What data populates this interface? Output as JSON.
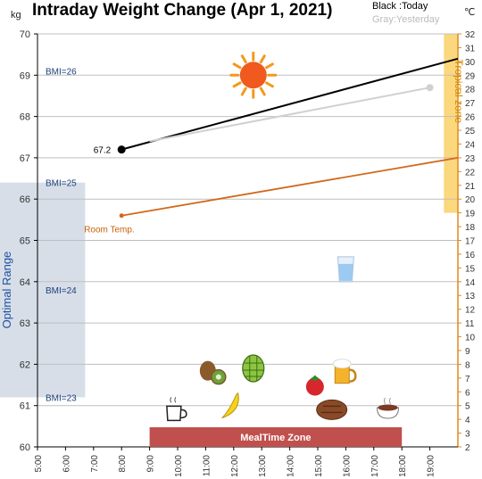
{
  "chart_data": {
    "type": "line",
    "title": "Intraday Weight Change (Apr 1, 2021)",
    "left_unit": "kg",
    "right_unit": "℃",
    "legend": {
      "today": "Black :Today",
      "yesterday": "Gray:Yesterday"
    },
    "x_ticks": [
      "5:00",
      "6:00",
      "7:00",
      "8:00",
      "9:00",
      "10:00",
      "11:00",
      "12:00",
      "13:00",
      "14:00",
      "15:00",
      "16:00",
      "17:00",
      "18:00",
      "19:00"
    ],
    "x_range_hours": [
      5,
      20
    ],
    "y_left": {
      "min": 60,
      "max": 70,
      "ticks": [
        60,
        61,
        62,
        63,
        64,
        65,
        66,
        67,
        68,
        69,
        70
      ]
    },
    "y_right": {
      "min": 2,
      "max": 32,
      "ticks": [
        2,
        3,
        4,
        5,
        6,
        7,
        8,
        9,
        10,
        11,
        12,
        13,
        14,
        15,
        16,
        17,
        18,
        19,
        20,
        21,
        22,
        23,
        24,
        25,
        26,
        27,
        28,
        29,
        30,
        31,
        32
      ]
    },
    "grid": true,
    "series": [
      {
        "name": "Today",
        "axis": "left",
        "color": "#000000",
        "points": [
          [
            8.0,
            67.2
          ],
          [
            20.0,
            69.4
          ]
        ],
        "marker": "start"
      },
      {
        "name": "Yesterday",
        "axis": "left",
        "color": "#d0d0d0",
        "points": [
          [
            9.0,
            67.4
          ],
          [
            19.0,
            68.7
          ]
        ],
        "marker": "end"
      },
      {
        "name": "Room Temp.",
        "axis": "right",
        "color": "#d2691e",
        "points": [
          [
            8.0,
            18.8
          ],
          [
            20.0,
            23.0
          ]
        ],
        "marker": "start"
      }
    ],
    "bmi_lines": [
      {
        "label": "BMI=26",
        "kg": 69.1
      },
      {
        "label": "BMI=25",
        "kg": 66.4
      },
      {
        "label": "BMI=24",
        "kg": 63.8
      },
      {
        "label": "BMI=23",
        "kg": 61.2
      }
    ],
    "bands": {
      "optimal": {
        "label": "Optimal Range",
        "kg_min": 61.2,
        "kg_max": 66.4,
        "x_max_hours": 6.7,
        "color": "#d7dee8"
      },
      "tropical": {
        "label": "Tropical zone",
        "temp_min": 19,
        "temp_max": 32,
        "x_min_hours": 19.5,
        "color": "#fbd87e"
      },
      "meal": {
        "label": "MealTime Zone",
        "x_min_hours": 9.0,
        "x_max_hours": 18.0,
        "color": "#c0504d"
      }
    },
    "labels": {
      "today_start": "67.2",
      "room_temp": "Room Temp."
    },
    "icons": [
      {
        "name": "sun-icon",
        "hour": 12.7,
        "kg": 69.0
      },
      {
        "name": "water-glass-icon",
        "hour": 16.0,
        "kg": 64.3
      },
      {
        "name": "kiwi-icon",
        "hour": 11.3,
        "kg": 61.8
      },
      {
        "name": "cherimoya-icon",
        "hour": 12.7,
        "kg": 61.9
      },
      {
        "name": "beer-mug-icon",
        "hour": 15.9,
        "kg": 61.8
      },
      {
        "name": "tomato-icon",
        "hour": 14.9,
        "kg": 61.5
      },
      {
        "name": "coffee-cup-icon",
        "hour": 9.9,
        "kg": 60.9
      },
      {
        "name": "banana-icon",
        "hour": 11.9,
        "kg": 61.0
      },
      {
        "name": "steak-icon",
        "hour": 15.5,
        "kg": 60.9
      },
      {
        "name": "soup-bowl-icon",
        "hour": 17.5,
        "kg": 60.95
      }
    ]
  }
}
